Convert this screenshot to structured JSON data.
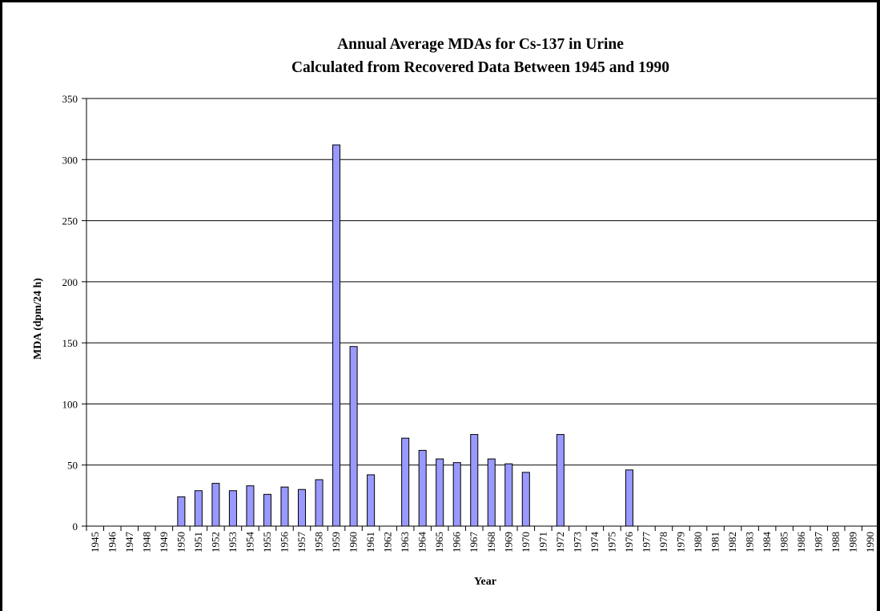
{
  "chart_data": {
    "type": "bar",
    "title": [
      "Annual Average MDAs for Cs-137 in Urine",
      "Calculated from Recovered Data Between 1945 and 1990"
    ],
    "xlabel": "Year",
    "ylabel": "MDA (dpm/24 h)",
    "ylim": [
      0,
      350
    ],
    "yticks": [
      0,
      50,
      100,
      150,
      200,
      250,
      300,
      350
    ],
    "grid": true,
    "legend": "none",
    "bar_color": "#9999ff",
    "categories": [
      "1945",
      "1946",
      "1947",
      "1948",
      "1949",
      "1950",
      "1951",
      "1952",
      "1953",
      "1954",
      "1955",
      "1956",
      "1957",
      "1958",
      "1959",
      "1960",
      "1961",
      "1962",
      "1963",
      "1964",
      "1965",
      "1966",
      "1967",
      "1968",
      "1969",
      "1970",
      "1971",
      "1972",
      "1973",
      "1974",
      "1975",
      "1976",
      "1977",
      "1978",
      "1979",
      "1980",
      "1981",
      "1982",
      "1983",
      "1984",
      "1985",
      "1986",
      "1987",
      "1988",
      "1989",
      "1990"
    ],
    "values": [
      null,
      null,
      null,
      null,
      null,
      24,
      29,
      35,
      29,
      33,
      26,
      32,
      30,
      38,
      312,
      147,
      42,
      null,
      72,
      62,
      55,
      52,
      75,
      55,
      51,
      44,
      null,
      75,
      null,
      null,
      null,
      46,
      null,
      null,
      null,
      null,
      null,
      null,
      null,
      null,
      null,
      null,
      null,
      null,
      null,
      null
    ]
  }
}
